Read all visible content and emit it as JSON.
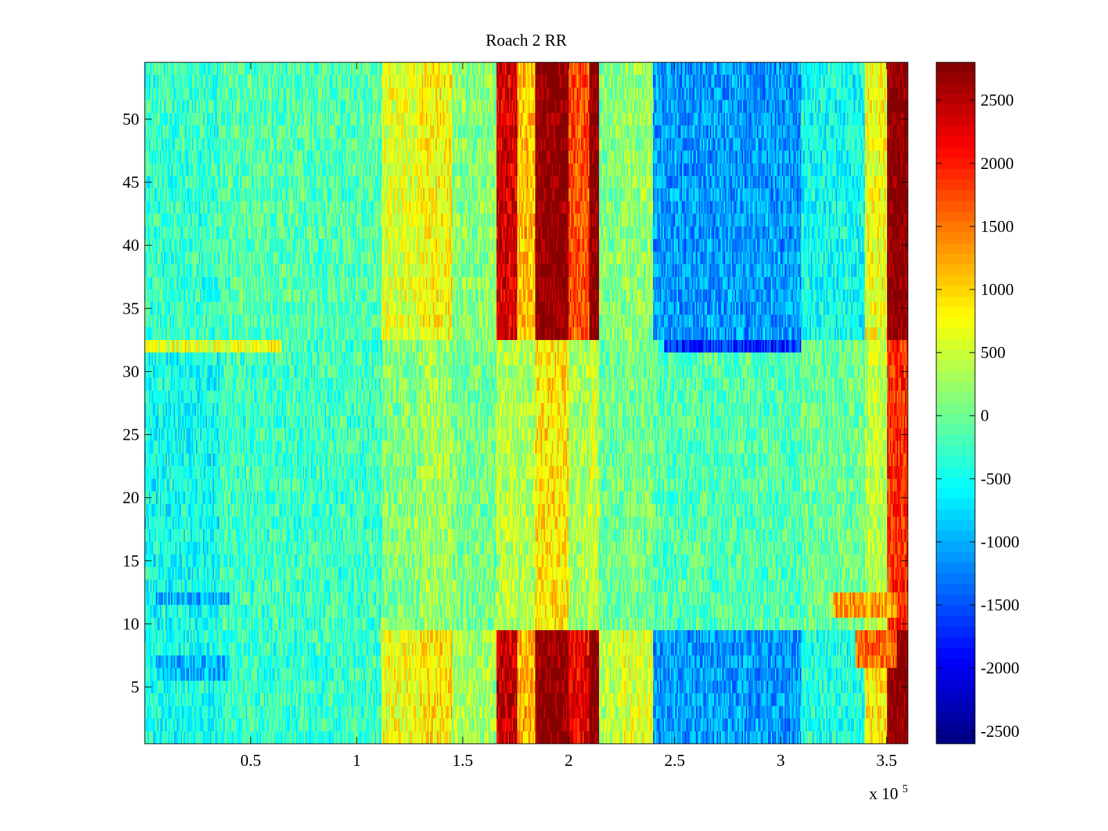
{
  "chart_data": {
    "type": "heatmap",
    "title": "Roach 2 RR",
    "xlabel": "",
    "ylabel": "",
    "x_exponent_label": "x 10",
    "x_exponent_power": "5",
    "xlim": [
      0,
      360000
    ],
    "ylim": [
      0.5,
      54.5
    ],
    "xticks": [
      {
        "value": 50000,
        "label": "0.5"
      },
      {
        "value": 100000,
        "label": "1"
      },
      {
        "value": 150000,
        "label": "1.5"
      },
      {
        "value": 200000,
        "label": "2"
      },
      {
        "value": 250000,
        "label": "2.5"
      },
      {
        "value": 300000,
        "label": "3"
      },
      {
        "value": 350000,
        "label": "3.5"
      }
    ],
    "yticks": [
      {
        "value": 5,
        "label": "5"
      },
      {
        "value": 10,
        "label": "10"
      },
      {
        "value": 15,
        "label": "15"
      },
      {
        "value": 20,
        "label": "20"
      },
      {
        "value": 25,
        "label": "25"
      },
      {
        "value": 30,
        "label": "30"
      },
      {
        "value": 35,
        "label": "35"
      },
      {
        "value": 40,
        "label": "40"
      },
      {
        "value": 45,
        "label": "45"
      },
      {
        "value": 50,
        "label": "50"
      }
    ],
    "rows": 54,
    "colormap": "jet",
    "clim": [
      -2600,
      2800
    ],
    "colorbar_ticks": [
      {
        "value": 2500,
        "label": "2500"
      },
      {
        "value": 2000,
        "label": "2000"
      },
      {
        "value": 1500,
        "label": "1500"
      },
      {
        "value": 1000,
        "label": "1000"
      },
      {
        "value": 500,
        "label": "500"
      },
      {
        "value": 0,
        "label": "0"
      },
      {
        "value": -500,
        "label": "-500"
      },
      {
        "value": -1000,
        "label": "-1000"
      },
      {
        "value": -1500,
        "label": "-1500"
      },
      {
        "value": -2000,
        "label": "-2000"
      },
      {
        "value": -2500,
        "label": "-2500"
      }
    ],
    "column_profile": [
      {
        "x": [
          0,
          35000
        ],
        "top": -300,
        "mid": -500,
        "bottom": -450
      },
      {
        "x": [
          35000,
          112000
        ],
        "top": -150,
        "mid": -250,
        "bottom": -300
      },
      {
        "x": [
          112000,
          130000
        ],
        "top": 600,
        "mid": 100,
        "bottom": 700
      },
      {
        "x": [
          130000,
          145000
        ],
        "top": 800,
        "mid": 250,
        "bottom": 900
      },
      {
        "x": [
          145000,
          166000
        ],
        "top": 150,
        "mid": 50,
        "bottom": 300
      },
      {
        "x": [
          166000,
          176000
        ],
        "top": 2300,
        "mid": 400,
        "bottom": 2400
      },
      {
        "x": [
          176000,
          184000
        ],
        "top": 1100,
        "mid": 350,
        "bottom": 1200
      },
      {
        "x": [
          184000,
          200000
        ],
        "top": 2800,
        "mid": 900,
        "bottom": 2800
      },
      {
        "x": [
          200000,
          210000
        ],
        "top": 1700,
        "mid": 300,
        "bottom": 2200
      },
      {
        "x": [
          210000,
          214000
        ],
        "top": 2800,
        "mid": 500,
        "bottom": 2800
      },
      {
        "x": [
          214000,
          225000
        ],
        "top": 100,
        "mid": 0,
        "bottom": 400
      },
      {
        "x": [
          225000,
          240000
        ],
        "top": 200,
        "mid": 50,
        "bottom": 600
      },
      {
        "x": [
          240000,
          310000
        ],
        "top": -1100,
        "mid": -150,
        "bottom": -1100
      },
      {
        "x": [
          310000,
          340000
        ],
        "top": -500,
        "mid": 0,
        "bottom": -400
      },
      {
        "x": [
          340000,
          350000
        ],
        "top": 700,
        "mid": 400,
        "bottom": 900
      },
      {
        "x": [
          350000,
          360000
        ],
        "top": 2800,
        "mid": 1900,
        "bottom": 2800
      }
    ],
    "row_features": [
      {
        "rows": [
          32,
          32
        ],
        "note": "horizontal band",
        "x": [
          0,
          65000
        ],
        "value": 700
      },
      {
        "rows": [
          32,
          32
        ],
        "note": "horizontal band",
        "x": [
          245000,
          310000
        ],
        "value": -1700
      },
      {
        "rows": [
          6,
          7
        ],
        "note": "horizontal band",
        "x": [
          5000,
          40000
        ],
        "value": -1000
      },
      {
        "rows": [
          12,
          12
        ],
        "note": "horizontal band",
        "x": [
          5000,
          40000
        ],
        "value": -1000
      },
      {
        "rows": [
          7,
          9
        ],
        "note": "horizontal band",
        "x": [
          335000,
          355000
        ],
        "value": 1600
      },
      {
        "rows": [
          11,
          12
        ],
        "note": "horizontal band",
        "x": [
          325000,
          355000
        ],
        "value": 1300
      }
    ]
  }
}
